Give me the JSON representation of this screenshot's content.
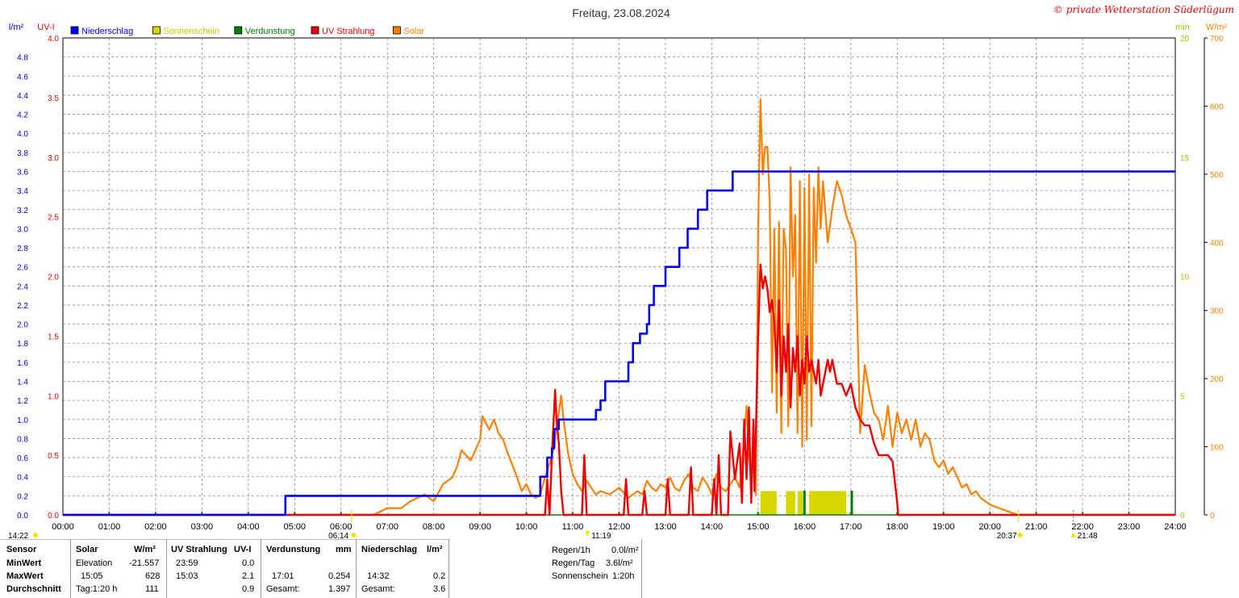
{
  "title": "Freitag, 23.08.2024",
  "copyright": "© private Wetterstation Süderlügum",
  "axis_units": {
    "left1": "l/m²",
    "left2": "UV-I",
    "right1": "min",
    "right2": "W/m²"
  },
  "legend": [
    {
      "label": "Niederschlag",
      "color": "#0000ff"
    },
    {
      "label": "Sonnenschein",
      "color": "#d7d700"
    },
    {
      "label": "Verdunstung",
      "color": "#008000"
    },
    {
      "label": "UV Strahlung",
      "color": "#ee0000"
    },
    {
      "label": "Solar",
      "color": "#ff8000"
    }
  ],
  "x_ticks": [
    "00:00",
    "01:00",
    "02:00",
    "03:00",
    "04:00",
    "05:00",
    "06:00",
    "07:00",
    "08:00",
    "09:00",
    "10:00",
    "11:00",
    "12:00",
    "13:00",
    "14:00",
    "15:00",
    "16:00",
    "17:00",
    "18:00",
    "19:00",
    "20:00",
    "21:00",
    "22:00",
    "23:00",
    "24:00"
  ],
  "y_rain_ticks": [
    "0.0",
    "0.2",
    "0.4",
    "0.6",
    "0.8",
    "1.0",
    "1.2",
    "1.4",
    "1.6",
    "1.8",
    "2.0",
    "2.2",
    "2.4",
    "2.6",
    "2.8",
    "3.0",
    "3.2",
    "3.4",
    "3.6",
    "3.8",
    "4.0",
    "4.2",
    "4.4",
    "4.6",
    "4.8"
  ],
  "y_uv_ticks": [
    "0.0",
    "0.5",
    "1.0",
    "1.5",
    "2.0",
    "2.5",
    "3.0",
    "3.5",
    "4.0"
  ],
  "y_min_ticks": [
    "0",
    "5",
    "10",
    "15",
    "20"
  ],
  "y_wm2_ticks": [
    "0",
    "100",
    "200",
    "300",
    "400",
    "500",
    "600",
    "700"
  ],
  "events": {
    "moonrise": "14:22",
    "sunrise": "06:14",
    "transit": "11:19",
    "sunset": "20:37",
    "moonset": "21:48"
  },
  "chart_data": {
    "type": "line",
    "title": "Freitag, 23.08.2024",
    "x_unit": "hours",
    "xlim": [
      0,
      24
    ],
    "series": [
      {
        "name": "Niederschlag",
        "unit": "l/m²",
        "axis": "left1",
        "ylim": [
          0,
          5
        ],
        "x": [
          0,
          4.8,
          4.8,
          10.3,
          10.3,
          10.45,
          10.45,
          10.55,
          10.55,
          10.6,
          10.6,
          10.7,
          10.7,
          10.75,
          10.75,
          11.5,
          11.5,
          11.6,
          11.6,
          11.7,
          11.7,
          12.2,
          12.2,
          12.3,
          12.3,
          12.45,
          12.45,
          12.6,
          12.6,
          12.65,
          12.65,
          12.75,
          12.75,
          13.0,
          13.0,
          13.3,
          13.3,
          13.48,
          13.48,
          13.7,
          13.7,
          13.9,
          13.9,
          14.45,
          14.45,
          24
        ],
        "y": [
          0,
          0,
          0.2,
          0.2,
          0.4,
          0.4,
          0.6,
          0.6,
          0.7,
          0.7,
          0.9,
          0.9,
          1.0,
          1.0,
          1.0,
          1.0,
          1.1,
          1.1,
          1.2,
          1.2,
          1.4,
          1.4,
          1.6,
          1.6,
          1.8,
          1.8,
          1.9,
          1.9,
          2.0,
          2.0,
          2.2,
          2.2,
          2.4,
          2.4,
          2.6,
          2.6,
          2.8,
          2.8,
          3.0,
          3.0,
          3.2,
          3.2,
          3.4,
          3.4,
          3.6,
          3.6
        ]
      },
      {
        "name": "Solar",
        "unit": "W/m²",
        "axis": "right2",
        "ylim": [
          0,
          700
        ],
        "x": [
          0,
          6.7,
          7.0,
          7.3,
          7.5,
          7.8,
          8.0,
          8.2,
          8.4,
          8.5,
          8.6,
          8.8,
          9.0,
          9.05,
          9.2,
          9.3,
          9.4,
          9.5,
          9.6,
          9.8,
          9.9,
          10.0,
          10.1,
          10.2,
          10.3,
          10.4,
          10.5,
          10.6,
          10.65,
          10.7,
          10.75,
          10.8,
          10.9,
          11.0,
          11.1,
          11.2,
          11.3,
          11.4,
          11.5,
          11.6,
          11.8,
          12.0,
          12.2,
          12.4,
          12.5,
          12.6,
          12.7,
          12.8,
          12.9,
          13.0,
          13.1,
          13.2,
          13.3,
          13.4,
          13.5,
          13.6,
          13.7,
          13.8,
          13.9,
          14.0,
          14.1,
          14.2,
          14.3,
          14.4,
          14.5,
          14.6,
          14.7,
          14.75,
          14.8,
          14.85,
          14.9,
          14.95,
          15.0,
          15.05,
          15.1,
          15.15,
          15.2,
          15.25,
          15.3,
          15.35,
          15.4,
          15.45,
          15.5,
          15.55,
          15.6,
          15.65,
          15.7,
          15.75,
          15.8,
          15.85,
          15.9,
          15.95,
          16.0,
          16.05,
          16.1,
          16.15,
          16.2,
          16.25,
          16.3,
          16.35,
          16.4,
          16.5,
          16.6,
          16.7,
          16.8,
          16.9,
          17.0,
          17.1,
          17.2,
          17.3,
          17.4,
          17.5,
          17.6,
          17.7,
          17.8,
          17.9,
          18.0,
          18.1,
          18.2,
          18.3,
          18.4,
          18.5,
          18.6,
          18.7,
          18.8,
          18.9,
          19.0,
          19.1,
          19.2,
          19.3,
          19.4,
          19.5,
          19.6,
          19.7,
          19.8,
          19.9,
          20.0,
          20.2,
          20.4,
          20.6,
          24
        ],
        "y": [
          0,
          0,
          10,
          10,
          20,
          30,
          20,
          45,
          55,
          70,
          95,
          80,
          110,
          145,
          125,
          140,
          120,
          110,
          90,
          55,
          35,
          45,
          30,
          25,
          30,
          55,
          75,
          100,
          130,
          150,
          175,
          140,
          90,
          60,
          45,
          35,
          50,
          40,
          30,
          35,
          30,
          40,
          25,
          35,
          30,
          50,
          40,
          35,
          45,
          40,
          55,
          40,
          35,
          50,
          60,
          40,
          35,
          55,
          45,
          30,
          60,
          40,
          35,
          45,
          55,
          40,
          110,
          160,
          90,
          50,
          100,
          30,
          420,
          610,
          500,
          540,
          540,
          460,
          180,
          420,
          150,
          430,
          120,
          420,
          390,
          130,
          510,
          350,
          440,
          120,
          490,
          100,
          480,
          110,
          500,
          130,
          480,
          370,
          510,
          420,
          490,
          400,
          450,
          490,
          470,
          440,
          420,
          400,
          120,
          220,
          180,
          150,
          140,
          110,
          160,
          100,
          150,
          120,
          140,
          110,
          140,
          100,
          120,
          110,
          80,
          70,
          80,
          60,
          70,
          55,
          40,
          45,
          30,
          35,
          25,
          20,
          15,
          10,
          5,
          0,
          0
        ]
      },
      {
        "name": "UV Strahlung",
        "unit": "UV-I",
        "axis": "left2",
        "ylim": [
          0,
          4
        ],
        "x": [
          0,
          10.4,
          10.45,
          10.5,
          10.55,
          10.6,
          10.62,
          10.65,
          10.7,
          10.75,
          10.8,
          10.85,
          10.9,
          10.95,
          11.0,
          11.1,
          11.2,
          11.25,
          11.3,
          11.4,
          12.0,
          12.1,
          12.15,
          12.2,
          12.3,
          12.5,
          12.55,
          12.6,
          12.65,
          12.7,
          13.0,
          13.05,
          13.1,
          13.2,
          13.5,
          13.55,
          13.6,
          13.65,
          13.7,
          14.0,
          14.05,
          14.1,
          14.15,
          14.2,
          14.35,
          14.4,
          14.5,
          14.6,
          14.65,
          14.7,
          14.75,
          14.8,
          14.85,
          14.9,
          14.92,
          15.0,
          15.05,
          15.1,
          15.15,
          15.2,
          15.25,
          15.3,
          15.35,
          15.4,
          15.45,
          15.5,
          15.55,
          15.6,
          15.65,
          15.7,
          15.75,
          15.8,
          15.85,
          15.9,
          15.95,
          16.0,
          16.05,
          16.1,
          16.15,
          16.2,
          16.25,
          16.3,
          16.35,
          16.4,
          16.45,
          16.5,
          16.55,
          16.6,
          16.7,
          16.8,
          16.9,
          17.0,
          17.1,
          17.2,
          17.3,
          17.4,
          17.5,
          17.6,
          17.7,
          17.8,
          17.9,
          18.0,
          18.02,
          24
        ],
        "y": [
          0,
          0,
          0.3,
          0,
          0.5,
          0.9,
          1.05,
          0.8,
          0.6,
          0.2,
          0,
          0,
          0,
          0,
          0,
          0,
          0,
          0.5,
          0,
          0,
          0,
          0,
          0.3,
          0,
          0,
          0,
          0.2,
          0,
          0,
          0,
          0,
          0.3,
          0,
          0,
          0,
          0.4,
          0,
          0,
          0,
          0,
          0.3,
          0,
          0.5,
          0,
          0,
          0.7,
          0.3,
          0.6,
          0.1,
          0.8,
          0.3,
          0.9,
          0.1,
          0.8,
          0.2,
          1.5,
          2.1,
          1.9,
          2.0,
          1.9,
          1.7,
          1.8,
          1.6,
          1.2,
          1.8,
          1.0,
          1.5,
          1.2,
          1.6,
          0.9,
          1.4,
          1.2,
          1.5,
          1.0,
          1.3,
          1.1,
          1.5,
          1.2,
          1.3,
          1.2,
          1.1,
          1.3,
          1.0,
          1.1,
          1.2,
          1.3,
          1.2,
          1.3,
          1.1,
          1.1,
          1.0,
          1.1,
          0.9,
          0.8,
          0.75,
          0.75,
          0.6,
          0.5,
          0.5,
          0.5,
          0.45,
          0.1,
          0,
          0
        ]
      },
      {
        "name": "Sonnenschein",
        "unit": "min",
        "axis": "right1",
        "ylim": [
          0,
          20
        ],
        "bars": [
          {
            "x0": 15.05,
            "x1": 15.4,
            "y": 1
          },
          {
            "x0": 15.6,
            "x1": 15.8,
            "y": 1
          },
          {
            "x0": 15.85,
            "x1": 15.97,
            "y": 1
          },
          {
            "x0": 16.1,
            "x1": 16.9,
            "y": 1
          }
        ]
      },
      {
        "name": "Verdunstung",
        "unit": "mm",
        "axis": "right1",
        "ticks_x": [
          1,
          2,
          3,
          4,
          5,
          6,
          9,
          10,
          11,
          12,
          13,
          14,
          15,
          16,
          17,
          18,
          19,
          20,
          21,
          22,
          23
        ],
        "highlight_x": [
          16.0,
          17.02
        ]
      }
    ]
  },
  "stats": {
    "headers": {
      "sensor": "Sensor",
      "solar": "Solar",
      "solar_unit": "W/m²",
      "uv": "UV Strahlung",
      "uv_unit": "UV-I",
      "verd": "Verdunstung",
      "verd_unit": "mm",
      "nied": "Niederschlag",
      "nied_unit": "l/m²"
    },
    "rows": [
      {
        "label": "MinWert",
        "solar_time": "Elevation",
        "solar_val": "-21.557",
        "uv_time": "23:59",
        "uv_val": "0.0",
        "verd_time": "",
        "verd_val": "",
        "nied_time": "",
        "nied_val": ""
      },
      {
        "label": "MaxWert",
        "solar_time": "15:05",
        "solar_val": "628",
        "uv_time": "15:03",
        "uv_val": "2.1",
        "verd_time": "17:01",
        "verd_val": "0.254",
        "nied_time": "14:32",
        "nied_val": "0.2"
      },
      {
        "label": "Durchschnitt",
        "solar_time": "Tag:1:20 h",
        "solar_val": "111",
        "uv_time": "",
        "uv_val": "0.9",
        "verd_time": "Gesamt:",
        "verd_val": "1.397",
        "nied_time": "Gesamt:",
        "nied_val": "3.6"
      }
    ],
    "extra": [
      {
        "label": "Regen/1h",
        "value": "0.0l/m²"
      },
      {
        "label": "Regen/Tag",
        "value": "3.6l/m²"
      },
      {
        "label": "Sonnenschein",
        "value": "1:20h"
      }
    ]
  }
}
